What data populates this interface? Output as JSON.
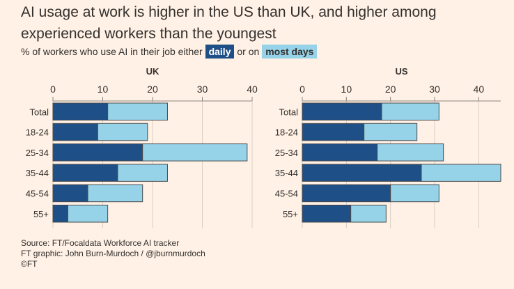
{
  "title": "AI usage at work is higher in the US than UK, and higher among experienced workers than the youngest",
  "subtitle": {
    "prefix": "% of workers who use AI in their job either",
    "daily_label": "daily",
    "connector": "or on",
    "most_days_label": "most days"
  },
  "colors": {
    "daily": "#1f4f87",
    "most_days": "#96d3e8",
    "background": "#fff1e5",
    "axis": "#8b8580",
    "grid": "#d9cec4",
    "bar_outline": "#4a4a4a"
  },
  "chart_data": [
    {
      "type": "bar",
      "orientation": "horizontal",
      "stacked": true,
      "title": "UK",
      "categories": [
        "Total",
        "18-24",
        "25-34",
        "35-44",
        "45-54",
        "55+"
      ],
      "series": [
        {
          "name": "daily",
          "values": [
            11,
            9,
            18,
            13,
            7,
            3
          ]
        },
        {
          "name": "most days",
          "values": [
            12,
            10,
            21,
            10,
            11,
            8
          ]
        }
      ],
      "xlim": [
        0,
        40
      ],
      "xticks": [
        0,
        10,
        20,
        30,
        40
      ]
    },
    {
      "type": "bar",
      "orientation": "horizontal",
      "stacked": true,
      "title": "US",
      "categories": [
        "Total",
        "18-24",
        "25-34",
        "35-44",
        "45-54",
        "55+"
      ],
      "series": [
        {
          "name": "daily",
          "values": [
            18,
            14,
            17,
            27,
            20,
            11
          ]
        },
        {
          "name": "most days",
          "values": [
            13,
            12,
            15,
            18,
            11,
            8
          ]
        }
      ],
      "xlim": [
        0,
        45
      ],
      "xticks": [
        0,
        10,
        20,
        30,
        40
      ]
    }
  ],
  "footer": {
    "source": "Source: FT/Focaldata Workforce AI tracker",
    "graphic": "FT graphic: John Burn-Murdoch / @jburnmurdoch",
    "copyright": "©FT"
  }
}
